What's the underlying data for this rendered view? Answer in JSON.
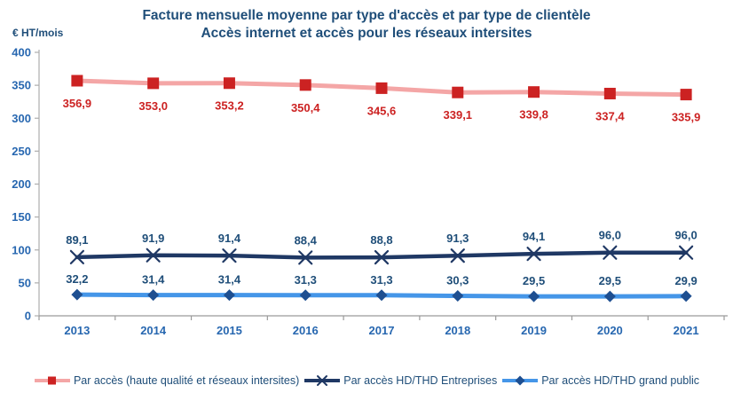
{
  "title": {
    "line1": "Facture mensuelle moyenne par type d'accès et par type de clientèle",
    "line2": "Accès internet et accès pour les réseaux intersites"
  },
  "y_axis_unit": "€ HT/mois",
  "colors": {
    "title_text": "#1F4E79",
    "axis_line": "#ADADAD",
    "tick_label_blue": "#2767B0",
    "data_label_navy": "#1F4E79",
    "red_marker": "#CC2222",
    "red_line": "#F4A6A6",
    "navy_line": "#1F3864",
    "blue_line": "#4596E8",
    "blue_marker": "#1E4F91"
  },
  "chart_data": {
    "type": "line",
    "title": "Facture mensuelle moyenne par type d'accès et par type de clientèle — Accès internet et accès pour les réseaux intersites",
    "ylabel": "€ HT/mois",
    "xlabel": "",
    "grid": false,
    "legend_position": "bottom",
    "ylim": [
      0,
      400
    ],
    "y_ticks": [
      "0",
      "50",
      "100",
      "150",
      "200",
      "250",
      "300",
      "350",
      "400"
    ],
    "categories": [
      "2013",
      "2014",
      "2015",
      "2016",
      "2017",
      "2018",
      "2019",
      "2020",
      "2021"
    ],
    "series": [
      {
        "name": "Par accès (haute qualité et réseaux intersites)",
        "values": [
          356.9,
          353.0,
          353.2,
          350.4,
          345.6,
          339.1,
          339.8,
          337.4,
          335.9
        ],
        "labels": [
          "356,9",
          "353,0",
          "353,2",
          "350,4",
          "345,6",
          "339,1",
          "339,8",
          "337,4",
          "335,9"
        ],
        "marker": "square",
        "line_color": "#F4A6A6",
        "marker_color": "#CC2222",
        "label_color": "#CC2222",
        "label_position": "below"
      },
      {
        "name": "Par accès HD/THD Entreprises",
        "values": [
          89.1,
          91.9,
          91.4,
          88.4,
          88.8,
          91.3,
          94.1,
          96.0,
          96.0
        ],
        "labels": [
          "89,1",
          "91,9",
          "91,4",
          "88,4",
          "88,8",
          "91,3",
          "94,1",
          "96,0",
          "96,0"
        ],
        "marker": "x",
        "line_color": "#1F3864",
        "marker_color": "#1F3864",
        "label_color": "#1F4E79",
        "label_position": "above"
      },
      {
        "name": "Par accès HD/THD grand public",
        "values": [
          32.2,
          31.4,
          31.4,
          31.3,
          31.3,
          30.3,
          29.5,
          29.5,
          29.9
        ],
        "labels": [
          "32,2",
          "31,4",
          "31,4",
          "31,3",
          "31,3",
          "30,3",
          "29,5",
          "29,5",
          "29,9"
        ],
        "marker": "diamond",
        "line_color": "#4596E8",
        "marker_color": "#1E4F91",
        "label_color": "#1F4E79",
        "label_position": "above"
      }
    ]
  }
}
